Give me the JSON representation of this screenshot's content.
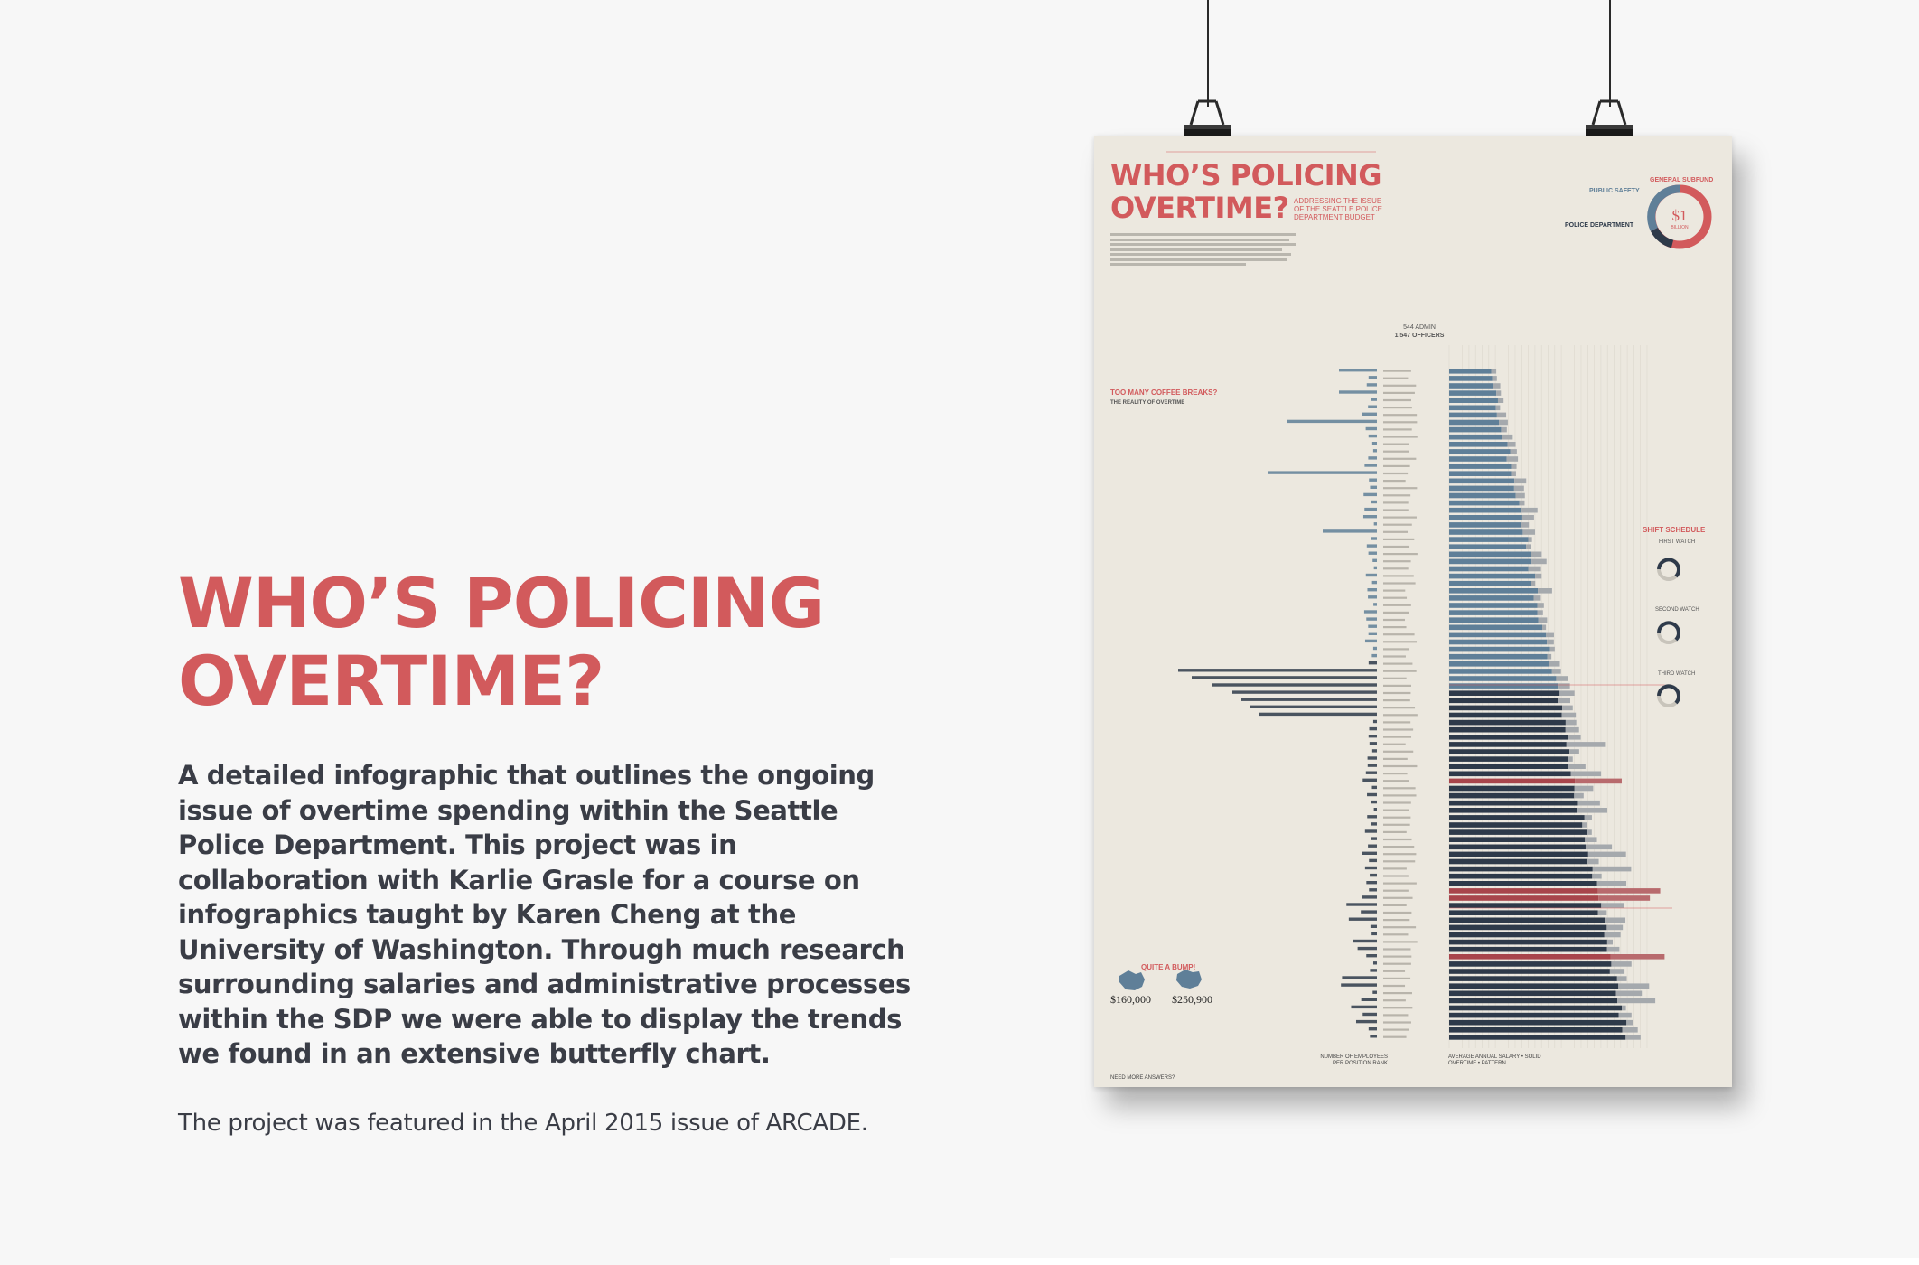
{
  "page": {
    "title_line1": "WHO’S POLICING",
    "title_line2": "OVERTIME?",
    "description": "A detailed infographic that outlines the ongoing issue of overtime spending within the Seattle Police Department. This project was in collaboration with Karlie Grasle for a course on infographics taught by Karen Cheng at the University of Washington. Through much research surrounding salaries and administrative processes within the SDP we were able to display the trends we found in an extensive butterfly chart.",
    "note": "The project was featured in the April 2015 issue of ARCADE."
  },
  "poster": {
    "title_line1": "WHO’S POLICING",
    "title_line2": "OVERTIME?",
    "subtitle": "ADDRESSING THE ISSUE OF THE SEATTLE POLICE DEPARTMENT BUDGET",
    "general_subfund": "GENERAL SUBFUND",
    "public_safety": "PUBLIC SAFETY",
    "police_department": "POLICE DEPARTMENT",
    "donut_value": "$1",
    "donut_unit": "BILLION",
    "admin_count": "544 ADMIN",
    "officer_count": "1,547 OFFICERS",
    "coffee_title": "TOO MANY COFFEE BREAKS?",
    "coffee_sub": "THE REALITY OF OVERTIME",
    "shift_title": "SHIFT SCHEDULE",
    "shifts": [
      "FIRST WATCH",
      "SECOND WATCH",
      "THIRD WATCH"
    ],
    "bump_title": "QUITE A BUMP!",
    "bump_value_left": "$160,000",
    "bump_value_right": "$250,900",
    "footer_left": "NUMBER OF EMPLOYEES PER POSITION RANK",
    "footer_right": "AVERAGE ANNUAL SALARY • SOLID OVERTIME • PATTERN",
    "footer_credit": "NEED MORE ANSWERS?"
  },
  "colors": {
    "accent": "#d25a5c",
    "text_dark": "#3a3d46",
    "poster_bg": "#ece8df",
    "bar_blue": "#5f7f98",
    "bar_navy": "#2e3a4a",
    "bar_red": "#a8454b",
    "overtime_grey": "#a5a9ad"
  }
}
